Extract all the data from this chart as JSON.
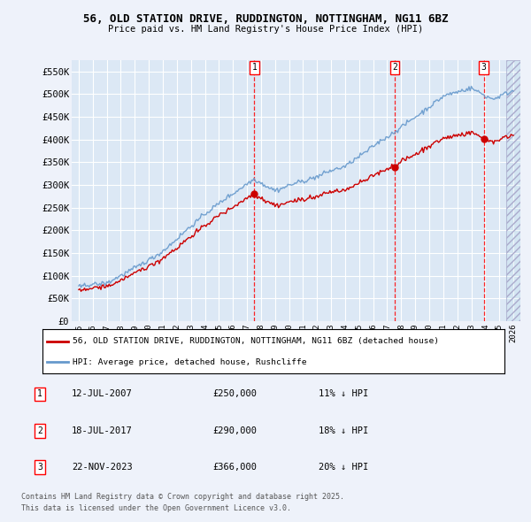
{
  "title_line1": "56, OLD STATION DRIVE, RUDDINGTON, NOTTINGHAM, NG11 6BZ",
  "title_line2": "Price paid vs. HM Land Registry's House Price Index (HPI)",
  "background_color": "#eef2fa",
  "plot_bg_color": "#dce8f5",
  "grid_color": "#ffffff",
  "red_line_label": "56, OLD STATION DRIVE, RUDDINGTON, NOTTINGHAM, NG11 6BZ (detached house)",
  "blue_line_label": "HPI: Average price, detached house, Rushcliffe",
  "transactions": [
    {
      "num": 1,
      "date": "12-JUL-2007",
      "price": 250000,
      "pct": "11%",
      "dir": "↓",
      "x": 2007.53
    },
    {
      "num": 2,
      "date": "18-JUL-2017",
      "price": 290000,
      "pct": "18%",
      "dir": "↓",
      "x": 2017.53
    },
    {
      "num": 3,
      "date": "22-NOV-2023",
      "price": 366000,
      "pct": "20%",
      "dir": "↓",
      "x": 2023.89
    }
  ],
  "footer_line1": "Contains HM Land Registry data © Crown copyright and database right 2025.",
  "footer_line2": "This data is licensed under the Open Government Licence v3.0.",
  "ylim": [
    0,
    575000
  ],
  "xlim_start": 1994.5,
  "xlim_end": 2026.5,
  "yticks": [
    0,
    50000,
    100000,
    150000,
    200000,
    250000,
    300000,
    350000,
    400000,
    450000,
    500000,
    550000
  ],
  "ytick_labels": [
    "£0",
    "£50K",
    "£100K",
    "£150K",
    "£200K",
    "£250K",
    "£300K",
    "£350K",
    "£400K",
    "£450K",
    "£500K",
    "£550K"
  ],
  "hatch_start": 2025.5,
  "transaction_dot_size": 6,
  "red_line_color": "#cc0000",
  "blue_line_color": "#6699cc"
}
